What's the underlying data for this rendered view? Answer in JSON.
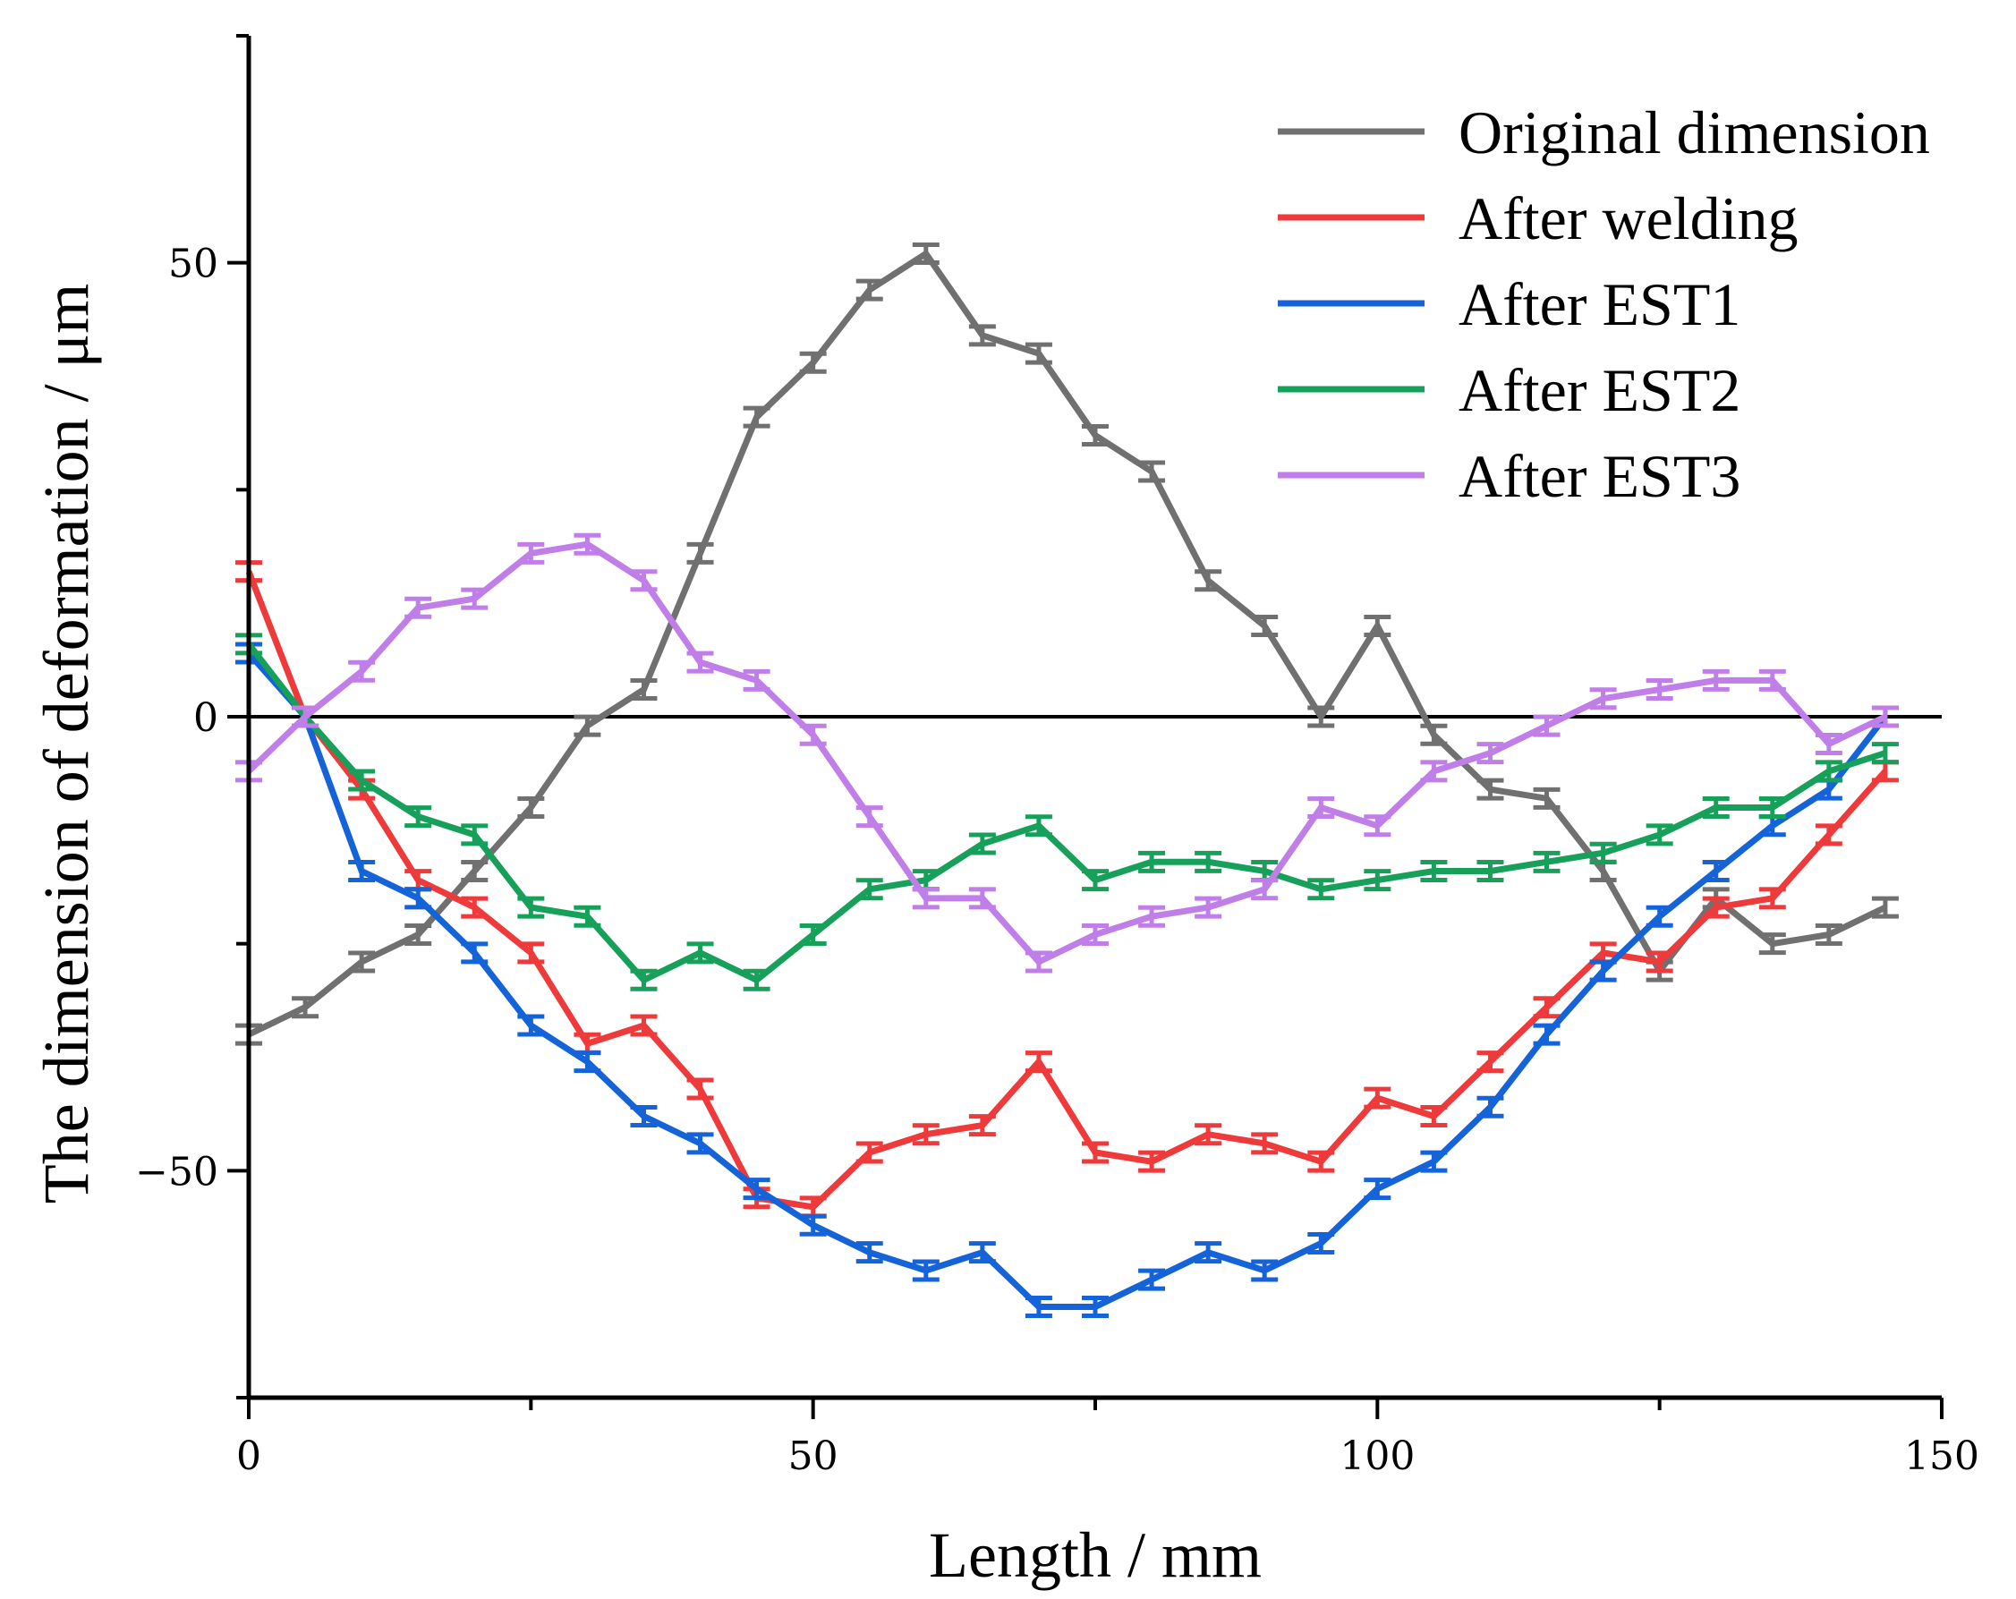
{
  "chart_data": {
    "type": "line",
    "title": "",
    "xlabel": "Length / mm",
    "ylabel": "The dimension of deformation / μm",
    "xlim": [
      0,
      150
    ],
    "ylim": [
      -75,
      75
    ],
    "x_ticks": [
      0,
      50,
      100,
      150
    ],
    "y_ticks": [
      -50,
      0,
      50
    ],
    "error_bars": true,
    "zero_line": true,
    "legend_position": "top-right",
    "x": [
      0,
      5,
      10,
      15,
      20,
      25,
      30,
      35,
      40,
      45,
      50,
      55,
      60,
      65,
      70,
      75,
      80,
      85,
      90,
      95,
      100,
      105,
      110,
      115,
      120,
      125,
      130,
      135,
      140,
      145
    ],
    "series": [
      {
        "name": "Original dimension",
        "color": "#707070",
        "values": [
          -35,
          -32,
          -27,
          -24,
          -17,
          -10,
          -1,
          3,
          18,
          33,
          39,
          47,
          51,
          42,
          40,
          31,
          27,
          15,
          10,
          0,
          10,
          -2,
          -8,
          -9,
          -17,
          -28,
          -20,
          -25,
          -24,
          -21
        ]
      },
      {
        "name": "After welding",
        "color": "#ee3a3a",
        "values": [
          16,
          0,
          -8,
          -18,
          -21,
          -26,
          -36,
          -34,
          -41,
          -53,
          -54,
          -48,
          -46,
          -45,
          -38,
          -48,
          -49,
          -46,
          -47,
          -49,
          -42,
          -44,
          -38,
          -32,
          -26,
          -27,
          -21,
          -20,
          -13,
          -6
        ]
      },
      {
        "name": "After EST1",
        "color": "#1463d8",
        "values": [
          7,
          0,
          -17,
          -20,
          -26,
          -34,
          -38,
          -44,
          -47,
          -52,
          -56,
          -59,
          -61,
          -59,
          -65,
          -65,
          -62,
          -59,
          -61,
          -58,
          -52,
          -49,
          -43,
          -35,
          -28,
          -22,
          -17,
          -12,
          -8,
          0
        ]
      },
      {
        "name": "After EST2",
        "color": "#17a05a",
        "values": [
          8,
          0,
          -7,
          -11,
          -13,
          -21,
          -22,
          -29,
          -26,
          -29,
          -24,
          -19,
          -18,
          -14,
          -12,
          -18,
          -16,
          -16,
          -17,
          -19,
          -18,
          -17,
          -17,
          -16,
          -15,
          -13,
          -10,
          -10,
          -6,
          -4
        ]
      },
      {
        "name": "After EST3",
        "color": "#c07ee8",
        "values": [
          -6,
          0,
          5,
          12,
          13,
          18,
          19,
          15,
          6,
          4,
          -2,
          -11,
          -20,
          -20,
          -27,
          -24,
          -22,
          -21,
          -19,
          -10,
          -12,
          -6,
          -4,
          -1,
          2,
          3,
          4,
          4,
          -3,
          0
        ]
      }
    ]
  }
}
